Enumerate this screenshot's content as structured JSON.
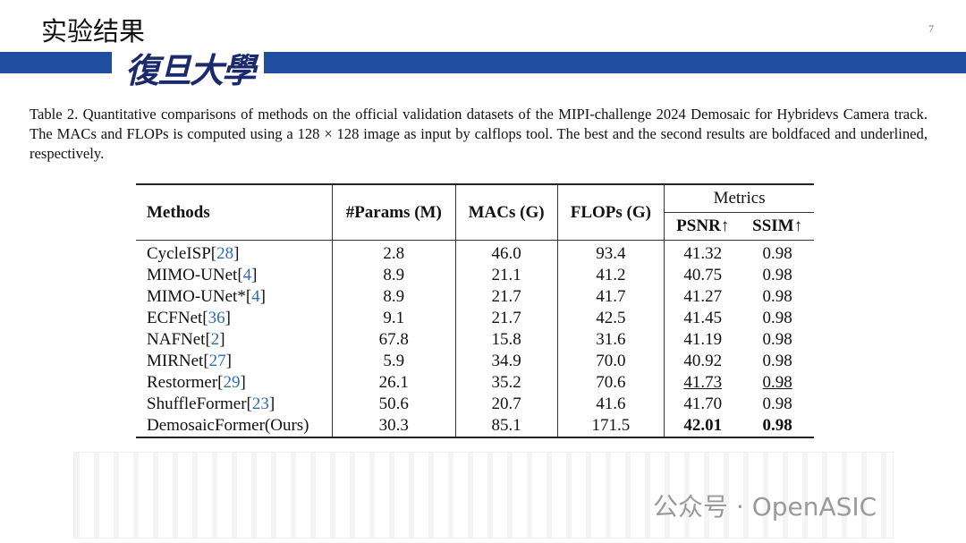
{
  "header": {
    "title": "实验结果",
    "logo": "復旦大學",
    "page_number": "7"
  },
  "caption": "Table 2.  Quantitative comparisons of methods on the official validation datasets of the MIPI-challenge 2024 Demosaic for Hybridevs Camera track. The MACs and FLOPs is computed using a 128 × 128 image as input by calflops tool. The best and the second results are boldfaced and underlined, respectively.",
  "table": {
    "headers": [
      "Methods",
      "#Params (M)",
      "MACs (G)",
      "FLOPs (G)"
    ],
    "group_header": "Metrics",
    "sub_headers": [
      "PSNR↑",
      "SSIM↑"
    ],
    "rows": [
      [
        [
          "CycleISP[",
          "28",
          "]"
        ],
        "2.8",
        "46.0",
        "93.4",
        "41.32",
        "0.98"
      ],
      [
        [
          "MIMO-UNet[",
          "4",
          "]"
        ],
        "8.9",
        "21.1",
        "41.2",
        "40.75",
        "0.98"
      ],
      [
        [
          "MIMO-UNet*[",
          "4",
          "]"
        ],
        "8.9",
        "21.7",
        "41.7",
        "41.27",
        "0.98"
      ],
      [
        [
          "ECFNet[",
          "36",
          "]"
        ],
        "9.1",
        "21.7",
        "42.5",
        "41.45",
        "0.98"
      ],
      [
        [
          "NAFNet[",
          "2",
          "]"
        ],
        "67.8",
        "15.8",
        "31.6",
        "41.19",
        "0.98"
      ],
      [
        [
          "MIRNet[",
          "27",
          "]"
        ],
        "5.9",
        "34.9",
        "70.0",
        "40.92",
        "0.98"
      ],
      [
        [
          "Restormer[",
          "29",
          "]"
        ],
        "26.1",
        "35.2",
        "70.6",
        "41.73",
        "0.98"
      ],
      [
        [
          "ShuffleFormer[",
          "23",
          "]"
        ],
        "50.6",
        "20.7",
        "41.6",
        "41.70",
        "0.98"
      ],
      [
        [
          "DemosaicFormer(Ours)"
        ],
        "30.3",
        "85.1",
        "171.5",
        "42.01",
        "0.98"
      ]
    ],
    "bold_cells": [
      [
        8,
        4
      ],
      [
        8,
        5
      ]
    ],
    "underlined_cells": [
      [
        6,
        4
      ],
      [
        6,
        5
      ]
    ]
  },
  "watermark": "公众号 · OpenASIC"
}
